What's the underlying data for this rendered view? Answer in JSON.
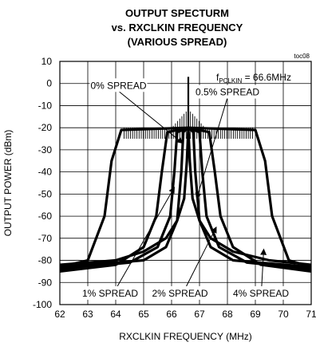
{
  "chart_data": {
    "type": "line",
    "title": [
      "OUTPUT SPECTURM",
      "vs. RXCLKIN FREQUENCY",
      "(VARIOUS SPREAD)"
    ],
    "xlabel": "RXCLKIN FREQUENCY (MHz)",
    "ylabel": "OUTPUT POWER (dBm)",
    "xlim": [
      62,
      71
    ],
    "ylim": [
      -100,
      10
    ],
    "xticks": [
      62,
      63,
      64,
      65,
      66,
      67,
      68,
      69,
      70,
      71
    ],
    "yticks": [
      10,
      0,
      -10,
      -20,
      -30,
      -40,
      -50,
      -60,
      -70,
      -80,
      -90,
      -100
    ],
    "grid": true,
    "note": "toc08",
    "condition": {
      "prefix": "f",
      "subscript": "PCLKIN",
      "suffix": " = 66.6MHz"
    },
    "center_frequency": 66.6,
    "series": [
      {
        "name": "0% SPREAD",
        "points": [
          [
            62,
            -82
          ],
          [
            64,
            -80
          ],
          [
            65,
            -76
          ],
          [
            65.8,
            -70
          ],
          [
            66.2,
            -62
          ],
          [
            66.45,
            -52
          ],
          [
            66.55,
            -35
          ],
          [
            66.6,
            -20
          ],
          [
            66.65,
            -35
          ],
          [
            66.75,
            -52
          ],
          [
            67,
            -62
          ],
          [
            67.4,
            -70
          ],
          [
            68.2,
            -76
          ],
          [
            69.5,
            -80
          ],
          [
            71,
            -82
          ]
        ]
      },
      {
        "name": "0.5% SPREAD",
        "points": [
          [
            62,
            -83
          ],
          [
            65,
            -80
          ],
          [
            65.8,
            -74
          ],
          [
            66.2,
            -62
          ],
          [
            66.35,
            -40
          ],
          [
            66.42,
            -22
          ],
          [
            66.6,
            -20
          ],
          [
            66.78,
            -22
          ],
          [
            66.85,
            -40
          ],
          [
            67,
            -62
          ],
          [
            67.4,
            -74
          ],
          [
            68.2,
            -80
          ],
          [
            71,
            -83
          ]
        ]
      },
      {
        "name": "1% SPREAD",
        "points": [
          [
            62,
            -84
          ],
          [
            64.5,
            -81
          ],
          [
            65.5,
            -74
          ],
          [
            65.95,
            -60
          ],
          [
            66.1,
            -40
          ],
          [
            66.2,
            -22
          ],
          [
            66.6,
            -20
          ],
          [
            67,
            -22
          ],
          [
            67.1,
            -40
          ],
          [
            67.25,
            -60
          ],
          [
            67.7,
            -74
          ],
          [
            68.7,
            -81
          ],
          [
            71,
            -84
          ]
        ]
      },
      {
        "name": "2% SPREAD",
        "points": [
          [
            62,
            -85
          ],
          [
            64,
            -82
          ],
          [
            65,
            -74
          ],
          [
            65.45,
            -60
          ],
          [
            65.65,
            -40
          ],
          [
            65.85,
            -22
          ],
          [
            66.6,
            -20
          ],
          [
            67.35,
            -22
          ],
          [
            67.55,
            -40
          ],
          [
            67.75,
            -60
          ],
          [
            68.2,
            -74
          ],
          [
            69.2,
            -82
          ],
          [
            71,
            -85
          ]
        ]
      },
      {
        "name": "4% SPREAD",
        "points": [
          [
            62,
            -83
          ],
          [
            63,
            -80
          ],
          [
            63.6,
            -60
          ],
          [
            63.85,
            -35
          ],
          [
            64.2,
            -21
          ],
          [
            66.6,
            -20
          ],
          [
            69,
            -21
          ],
          [
            69.35,
            -35
          ],
          [
            69.6,
            -60
          ],
          [
            70.2,
            -80
          ],
          [
            71,
            -83
          ]
        ]
      }
    ],
    "legend_labels": [
      {
        "text": "0% SPREAD",
        "at": [
          64.1,
          -2
        ],
        "arrow_to": [
          66.4,
          -27
        ]
      },
      {
        "text": "0.5% SPREAD",
        "at": [
          68.0,
          -5
        ],
        "arrow_to": [
          66.9,
          -52
        ]
      },
      {
        "text": "1% SPREAD",
        "at": [
          63.8,
          -96
        ],
        "arrow_to": [
          66.1,
          -47
        ]
      },
      {
        "text": "2% SPREAD",
        "at": [
          66.3,
          -96
        ],
        "arrow_to": [
          67.6,
          -65
        ]
      },
      {
        "text": "4% SPREAD",
        "at": [
          69.2,
          -96
        ],
        "arrow_to": [
          69.3,
          -75
        ]
      }
    ]
  }
}
